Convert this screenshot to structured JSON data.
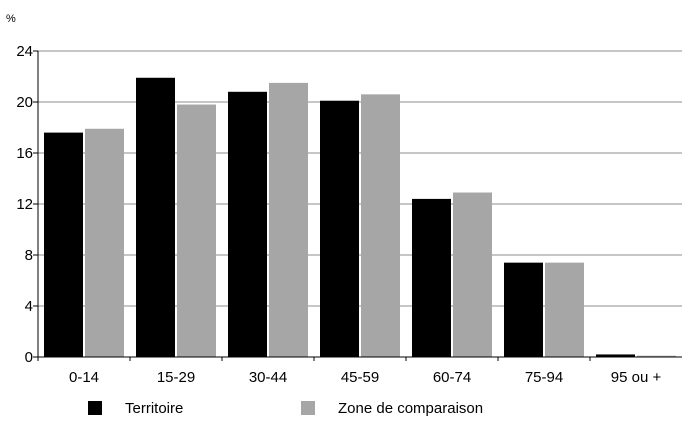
{
  "chart_data": {
    "type": "bar",
    "title": "",
    "xlabel": "",
    "ylabel": "%",
    "ylim": [
      0,
      24
    ],
    "yticks": [
      0,
      4,
      8,
      12,
      16,
      20,
      24
    ],
    "grid": true,
    "legend_position": "bottom",
    "categories": [
      "0-14",
      "15-29",
      "30-44",
      "45-59",
      "60-74",
      "75-94",
      "95 ou +"
    ],
    "series": [
      {
        "name": "Territoire",
        "color": "#000000",
        "values": [
          17.6,
          21.9,
          20.8,
          20.1,
          12.4,
          7.4,
          0.2
        ]
      },
      {
        "name": "Zone de comparaison",
        "color": "#a6a6a6",
        "values": [
          17.9,
          19.8,
          21.5,
          20.6,
          12.9,
          7.4,
          0.1
        ]
      }
    ]
  }
}
